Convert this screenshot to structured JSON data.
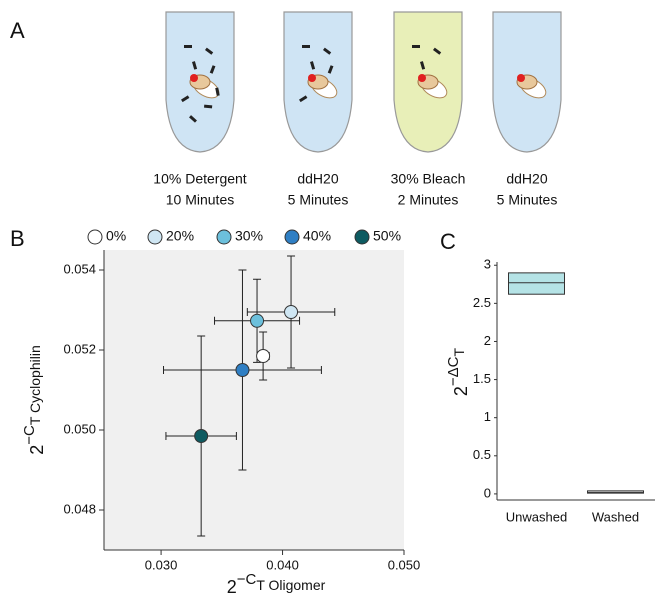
{
  "panel_labels": [
    "A",
    "B",
    "C"
  ],
  "treatments": [
    {
      "line1": "10% Detergent",
      "line2": "10 Minutes"
    },
    {
      "line1": "ddH20",
      "line2": "5 Minutes"
    },
    {
      "line1": "30% Bleach",
      "line2": "2 Minutes"
    },
    {
      "line1": "ddH20",
      "line2": "5 Minutes"
    }
  ],
  "chart_data": [
    {
      "type": "scatter",
      "x_label": {
        "base": "2",
        "exponent": "−C",
        "subscript": "T Oligomer"
      },
      "y_label": {
        "base": "2",
        "exponent": "−C",
        "subscript": "T Cyclophilin"
      },
      "xlim": [
        0.0253,
        0.05
      ],
      "ylim": [
        0.047,
        0.0545
      ],
      "xticks": [
        {
          "value": 0.03,
          "label": "0.030"
        },
        {
          "value": 0.04,
          "label": "0.040"
        },
        {
          "value": 0.05,
          "label": "0.050"
        }
      ],
      "yticks": [
        0.048,
        {
          "value": 0.05,
          "label": "0.050"
        },
        0.052,
        0.054
      ],
      "series": [
        {
          "name": "0%",
          "color": "#ffffff",
          "x": [
            0.0384
          ],
          "values": [
            0.05185
          ],
          "xerr": [
            0.0005
          ],
          "yerr": [
            0.0006
          ]
        },
        {
          "name": "20%",
          "color": "#cfe6f3",
          "x": [
            0.0407
          ],
          "values": [
            0.05295
          ],
          "xerr": [
            0.0036
          ],
          "yerr": [
            0.0014
          ]
        },
        {
          "name": "30%",
          "color": "#6cc0dc",
          "x": [
            0.0379
          ],
          "values": [
            0.05273
          ],
          "xerr": [
            0.0035
          ],
          "yerr": [
            0.00104
          ]
        },
        {
          "name": "40%",
          "color": "#2f7fc4",
          "x": [
            0.0367
          ],
          "values": [
            0.0515
          ],
          "xerr": [
            0.0065
          ],
          "yerr": [
            0.0025
          ]
        },
        {
          "name": "50%",
          "color": "#0e5b61",
          "x": [
            0.0333
          ],
          "values": [
            0.04985
          ],
          "xerr": [
            0.0029
          ],
          "yerr": [
            0.0025
          ]
        }
      ]
    },
    {
      "type": "box",
      "y_label": {
        "base": "2",
        "exponent": "−ΔC",
        "subscript": "T"
      },
      "categories": [
        "Unwashed",
        "Washed"
      ],
      "q1": [
        2.62,
        0.01
      ],
      "median": [
        2.77,
        0.02
      ],
      "q3": [
        2.9,
        0.04
      ],
      "colors": [
        "#b5e3e6",
        "#ffffff"
      ],
      "ylim": [
        -0.08,
        3.2
      ],
      "yticks": [
        0,
        0.5,
        1,
        1.5,
        2,
        2.5,
        3
      ]
    }
  ]
}
